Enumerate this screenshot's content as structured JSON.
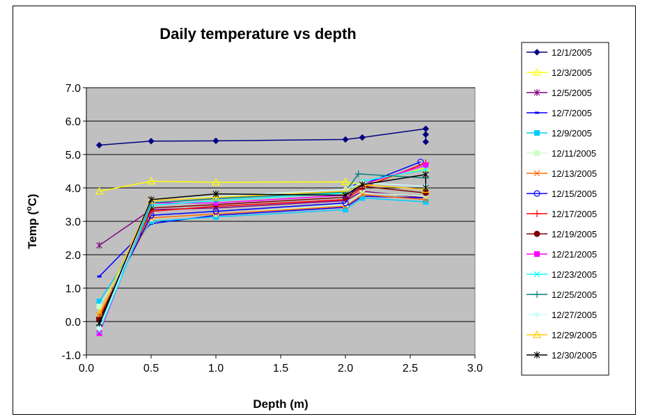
{
  "chart_data": {
    "type": "line",
    "title": "Daily temperature vs depth",
    "xlabel": "Depth (m)",
    "ylabel_main": "Temp (",
    "ylabel_sup": "o",
    "ylabel_end": "C)",
    "xlim": [
      0.0,
      3.0
    ],
    "ylim": [
      -1.0,
      7.0
    ],
    "xticks": [
      "0.0",
      "0.5",
      "1.0",
      "1.5",
      "2.0",
      "2.5",
      "3.0"
    ],
    "yticks": [
      "-1.0",
      "0.0",
      "1.0",
      "2.0",
      "3.0",
      "4.0",
      "5.0",
      "6.0",
      "7.0"
    ],
    "plot_background": "#c0c0c0",
    "legend_position": "right",
    "series": [
      {
        "name": "12/1/2005",
        "color": "#000080",
        "marker": "diamond",
        "x": [
          0.1,
          0.5,
          1.0,
          2.0,
          2.13,
          2.62,
          2.62,
          2.62
        ],
        "y": [
          5.28,
          5.4,
          5.41,
          5.45,
          5.51,
          5.77,
          5.6,
          5.38
        ]
      },
      {
        "name": "12/3/2005",
        "color": "#ffff00",
        "marker": "triangle",
        "x": [
          0.1,
          0.5,
          1.0,
          2.0,
          2.13,
          2.62
        ],
        "y": [
          3.9,
          4.2,
          4.17,
          4.18,
          4.1,
          4.6
        ]
      },
      {
        "name": "12/5/2005",
        "color": "#800080",
        "marker": "star",
        "x": [
          0.1,
          0.5,
          1.0,
          2.0,
          2.13,
          2.62
        ],
        "y": [
          2.28,
          3.35,
          3.4,
          3.62,
          3.9,
          3.7
        ]
      },
      {
        "name": "12/7/2005",
        "color": "#0000ff",
        "marker": "dash",
        "x": [
          0.1,
          0.5,
          1.0,
          2.0,
          2.13,
          2.62
        ],
        "y": [
          1.35,
          2.93,
          3.18,
          3.42,
          3.75,
          3.7
        ]
      },
      {
        "name": "12/9/2005",
        "color": "#00ccff",
        "marker": "square",
        "x": [
          0.1,
          0.5,
          1.0,
          2.0,
          2.13,
          2.62
        ],
        "y": [
          0.6,
          3.0,
          3.13,
          3.35,
          3.7,
          3.58
        ]
      },
      {
        "name": "12/11/2005",
        "color": "#ccffcc",
        "marker": "square",
        "x": [
          0.1,
          0.5,
          1.0,
          2.0,
          2.13,
          2.62
        ],
        "y": [
          0.45,
          3.08,
          3.22,
          3.5,
          3.85,
          3.75
        ]
      },
      {
        "name": "12/13/2005",
        "color": "#ff6600",
        "marker": "x",
        "x": [
          0.1,
          0.5,
          1.0,
          2.0,
          2.13,
          2.62
        ],
        "y": [
          0.2,
          3.1,
          3.22,
          3.45,
          3.8,
          3.65
        ]
      },
      {
        "name": "12/15/2005",
        "color": "#0000ff",
        "marker": "circle",
        "x": [
          0.1,
          0.5,
          1.0,
          2.0,
          2.08,
          2.58
        ],
        "y": [
          0.1,
          3.18,
          3.3,
          3.55,
          4.02,
          4.78
        ]
      },
      {
        "name": "12/17/2005",
        "color": "#ff0000",
        "marker": "plus",
        "x": [
          0.1,
          0.5,
          1.0,
          2.0,
          2.13,
          2.62
        ],
        "y": [
          0.1,
          3.3,
          3.45,
          3.65,
          4.0,
          4.75
        ]
      },
      {
        "name": "12/19/2005",
        "color": "#800000",
        "marker": "circle-filled",
        "x": [
          0.1,
          0.5,
          1.0,
          2.0,
          2.13,
          2.62
        ],
        "y": [
          0.05,
          3.4,
          3.5,
          3.72,
          4.05,
          3.85
        ]
      },
      {
        "name": "12/21/2005",
        "color": "#ff00ff",
        "marker": "square",
        "x": [
          0.1,
          0.5,
          1.0,
          2.0,
          2.13,
          2.62
        ],
        "y": [
          -0.35,
          3.55,
          3.55,
          3.78,
          4.1,
          4.68
        ]
      },
      {
        "name": "12/23/2005",
        "color": "#00ffff",
        "marker": "x",
        "x": [
          0.1,
          0.5,
          1.0,
          2.0,
          2.13,
          2.62
        ],
        "y": [
          -0.28,
          3.48,
          3.62,
          3.85,
          4.2,
          4.55
        ]
      },
      {
        "name": "12/25/2005",
        "color": "#008080",
        "marker": "plus",
        "x": [
          0.1,
          0.5,
          1.0,
          2.0,
          2.1,
          2.62
        ],
        "y": [
          -0.1,
          3.55,
          3.68,
          3.88,
          4.42,
          4.3
        ]
      },
      {
        "name": "12/27/2005",
        "color": "#ccffff",
        "marker": "diamond",
        "x": [
          0.1,
          0.5,
          1.0,
          2.0,
          2.13,
          2.62
        ],
        "y": [
          -0.2,
          3.62,
          3.75,
          3.95,
          4.15,
          4.05
        ]
      },
      {
        "name": "12/29/2005",
        "color": "#ffcc00",
        "marker": "triangle",
        "x": [
          0.1,
          0.5,
          1.0,
          2.0,
          2.13,
          2.62
        ],
        "y": [
          0.25,
          3.62,
          3.72,
          3.9,
          4.1,
          3.95
        ]
      },
      {
        "name": "12/30/2005",
        "color": "#000000",
        "marker": "star",
        "x": [
          0.1,
          0.5,
          1.0,
          2.0,
          2.13,
          2.62,
          2.62
        ],
        "y": [
          -0.05,
          3.65,
          3.82,
          3.78,
          4.1,
          4.4,
          4.0
        ]
      }
    ]
  }
}
